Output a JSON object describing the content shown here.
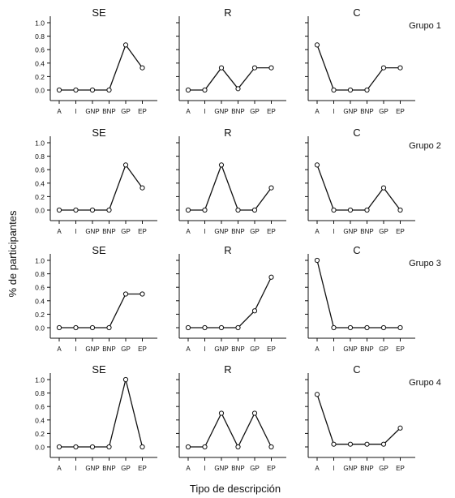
{
  "figure": {
    "ylabel": "% de participantes",
    "xlabel": "Tipo de descripción",
    "panel_titles": [
      "SE",
      "R",
      "C"
    ],
    "group_labels": [
      "Grupo 1",
      "Grupo 2",
      "Grupo 3",
      "Grupo 4"
    ]
  },
  "chart_data": [
    {
      "type": "line",
      "group": "Grupo 1",
      "title": "SE",
      "categories": [
        "A",
        "I",
        "GNP",
        "BNP",
        "GP",
        "EP"
      ],
      "values": [
        0.0,
        0.0,
        0.0,
        0.0,
        0.67,
        0.33
      ],
      "ylim": [
        0,
        1
      ],
      "yticks": [
        0,
        0.2,
        0.4,
        0.6,
        0.8,
        1.0
      ]
    },
    {
      "type": "line",
      "group": "Grupo 1",
      "title": "R",
      "categories": [
        "A",
        "I",
        "GNP",
        "BNP",
        "GP",
        "EP"
      ],
      "values": [
        0.0,
        0.0,
        0.33,
        0.02,
        0.33,
        0.33
      ],
      "ylim": [
        0,
        1
      ],
      "yticks": []
    },
    {
      "type": "line",
      "group": "Grupo 1",
      "title": "C",
      "categories": [
        "A",
        "I",
        "GNP",
        "BNP",
        "GP",
        "EP"
      ],
      "values": [
        0.67,
        0.0,
        0.0,
        0.0,
        0.33,
        0.33
      ],
      "ylim": [
        0,
        1
      ],
      "yticks": []
    },
    {
      "type": "line",
      "group": "Grupo 2",
      "title": "SE",
      "categories": [
        "A",
        "I",
        "GNP",
        "BNP",
        "GP",
        "EP"
      ],
      "values": [
        0.0,
        0.0,
        0.0,
        0.0,
        0.67,
        0.33
      ],
      "ylim": [
        0,
        1
      ],
      "yticks": [
        0,
        0.2,
        0.4,
        0.6,
        0.8,
        1.0
      ]
    },
    {
      "type": "line",
      "group": "Grupo 2",
      "title": "R",
      "categories": [
        "A",
        "I",
        "GNP",
        "BNP",
        "GP",
        "EP"
      ],
      "values": [
        0.0,
        0.0,
        0.67,
        0.0,
        0.0,
        0.33
      ],
      "ylim": [
        0,
        1
      ],
      "yticks": []
    },
    {
      "type": "line",
      "group": "Grupo 2",
      "title": "C",
      "categories": [
        "A",
        "I",
        "GNP",
        "BNP",
        "GP",
        "EP"
      ],
      "values": [
        0.67,
        0.0,
        0.0,
        0.0,
        0.33,
        0.0
      ],
      "ylim": [
        0,
        1
      ],
      "yticks": []
    },
    {
      "type": "line",
      "group": "Grupo 3",
      "title": "SE",
      "categories": [
        "A",
        "I",
        "GNP",
        "BNP",
        "GP",
        "EP"
      ],
      "values": [
        0.0,
        0.0,
        0.0,
        0.0,
        0.5,
        0.5
      ],
      "ylim": [
        0,
        1
      ],
      "yticks": [
        0,
        0.2,
        0.4,
        0.6,
        0.8,
        1.0
      ]
    },
    {
      "type": "line",
      "group": "Grupo 3",
      "title": "R",
      "categories": [
        "A",
        "I",
        "GNP",
        "BNP",
        "GP",
        "EP"
      ],
      "values": [
        0.0,
        0.0,
        0.0,
        0.0,
        0.25,
        0.75
      ],
      "ylim": [
        0,
        1
      ],
      "yticks": []
    },
    {
      "type": "line",
      "group": "Grupo 3",
      "title": "C",
      "categories": [
        "A",
        "I",
        "GNP",
        "BNP",
        "GP",
        "EP"
      ],
      "values": [
        1.0,
        0.0,
        0.0,
        0.0,
        0.0,
        0.0
      ],
      "ylim": [
        0,
        1
      ],
      "yticks": []
    },
    {
      "type": "line",
      "group": "Grupo 4",
      "title": "SE",
      "categories": [
        "A",
        "I",
        "GNP",
        "BNP",
        "GP",
        "EP"
      ],
      "values": [
        0.0,
        0.0,
        0.0,
        0.0,
        1.0,
        0.0
      ],
      "ylim": [
        0,
        1
      ],
      "yticks": [
        0,
        0.2,
        0.4,
        0.6,
        0.8,
        1.0
      ]
    },
    {
      "type": "line",
      "group": "Grupo 4",
      "title": "R",
      "categories": [
        "A",
        "I",
        "GNP",
        "BNP",
        "GP",
        "EP"
      ],
      "values": [
        0.0,
        0.0,
        0.5,
        0.0,
        0.5,
        0.0
      ],
      "ylim": [
        0,
        1
      ],
      "yticks": []
    },
    {
      "type": "line",
      "group": "Grupo 4",
      "title": "C",
      "categories": [
        "A",
        "I",
        "GNP",
        "BNP",
        "GP",
        "EP"
      ],
      "values": [
        0.78,
        0.04,
        0.04,
        0.04,
        0.04,
        0.28
      ],
      "ylim": [
        0,
        1
      ],
      "yticks": []
    }
  ]
}
